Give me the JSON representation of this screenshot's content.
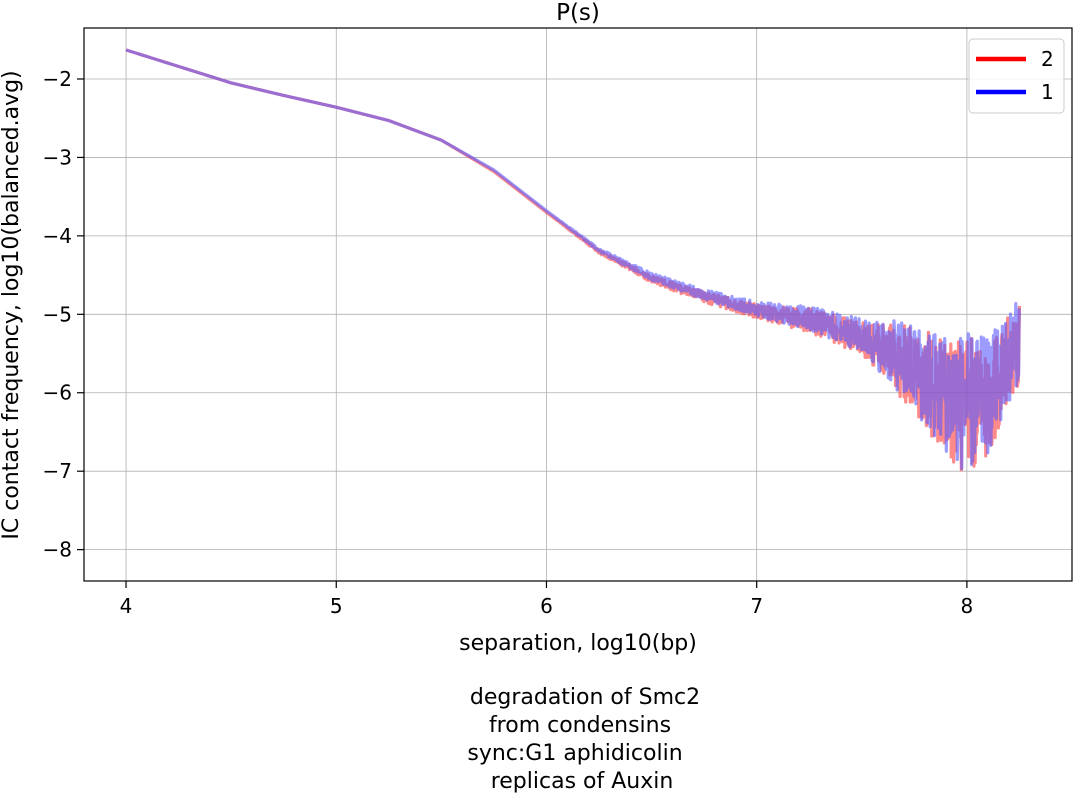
{
  "chart_data": {
    "type": "line",
    "title": "P(s)",
    "xlabel": "separation, log10(bp)",
    "ylabel": "IC contact frequency, log10(balanced.avg)",
    "xlim": [
      3.8,
      8.5
    ],
    "ylim": [
      -8.4,
      -1.35
    ],
    "xticks": [
      4,
      5,
      6,
      7,
      8
    ],
    "yticks": [
      -2,
      -3,
      -4,
      -5,
      -6,
      -7,
      -8
    ],
    "xtick_labels": [
      "4",
      "5",
      "6",
      "7",
      "8"
    ],
    "ytick_labels": [
      "−2",
      "−3",
      "−4",
      "−5",
      "−6",
      "−7",
      "−8"
    ],
    "grid": true,
    "legend_position": "top-right",
    "series": [
      {
        "name": "2",
        "color": "#ff0000",
        "x": [
          4.0,
          4.25,
          4.5,
          4.75,
          5.0,
          5.25,
          5.5,
          5.75,
          6.0,
          6.25,
          6.5,
          6.75,
          7.0,
          7.25,
          7.5,
          7.7,
          7.85,
          8.0,
          8.1,
          8.25
        ],
        "y": [
          -1.63,
          -1.84,
          -2.05,
          -2.21,
          -2.36,
          -2.53,
          -2.78,
          -3.18,
          -3.7,
          -4.2,
          -4.55,
          -4.78,
          -4.96,
          -5.08,
          -5.3,
          -5.62,
          -5.95,
          -6.2,
          -6.1,
          -5.35
        ]
      },
      {
        "name": "1",
        "color": "#0000ff",
        "x": [
          4.0,
          4.25,
          4.5,
          4.75,
          5.0,
          5.25,
          5.5,
          5.75,
          6.0,
          6.25,
          6.5,
          6.75,
          7.0,
          7.25,
          7.5,
          7.7,
          7.85,
          8.0,
          8.1,
          8.25
        ],
        "y": [
          -1.63,
          -1.84,
          -2.05,
          -2.21,
          -2.36,
          -2.53,
          -2.78,
          -3.16,
          -3.68,
          -4.18,
          -4.52,
          -4.75,
          -4.93,
          -5.05,
          -5.27,
          -5.58,
          -5.9,
          -6.15,
          -6.05,
          -5.3
        ]
      }
    ],
    "caption": [
      "degradation of Smc2",
      "from condensins",
      "sync:G1 aphidicolin",
      "replicas of Auxin"
    ]
  }
}
